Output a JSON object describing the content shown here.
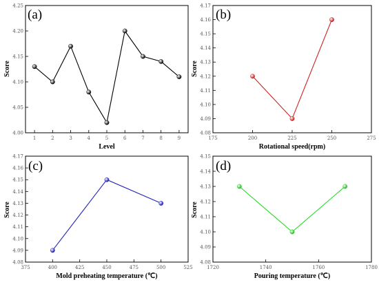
{
  "chart_data": [
    {
      "type": "line",
      "panel_label": "(a)",
      "xlabel": "Level",
      "ylabel": "Score",
      "x": [
        1,
        2,
        3,
        4,
        5,
        6,
        7,
        8,
        9
      ],
      "series": [
        {
          "values": [
            4.13,
            4.1,
            4.17,
            4.08,
            4.02,
            4.2,
            4.15,
            4.14,
            4.11
          ],
          "color": "#000000"
        }
      ],
      "xlim": [
        0.5,
        9.5
      ],
      "ylim": [
        4.0,
        4.25
      ],
      "xticks": [
        1,
        2,
        3,
        4,
        5,
        6,
        7,
        8,
        9
      ],
      "yticks": [
        4.0,
        4.05,
        4.1,
        4.15,
        4.2,
        4.25
      ],
      "ytick_labels": [
        "4.00",
        "4.05",
        "4.10",
        "4.15",
        "4.20",
        "4.25"
      ],
      "grid": false
    },
    {
      "type": "line",
      "panel_label": "(b)",
      "xlabel": "Rotational speed(rpm)",
      "ylabel": "Score",
      "x": [
        200,
        225,
        250
      ],
      "series": [
        {
          "values": [
            4.12,
            4.09,
            4.16
          ],
          "color": "#cc2222"
        }
      ],
      "xlim": [
        175,
        275
      ],
      "ylim": [
        4.08,
        4.17
      ],
      "xticks": [
        175,
        200,
        225,
        250,
        275
      ],
      "yticks": [
        4.08,
        4.09,
        4.1,
        4.11,
        4.12,
        4.13,
        4.14,
        4.15,
        4.16,
        4.17
      ],
      "ytick_labels": [
        "4.08",
        "4.09",
        "4.10",
        "4.11",
        "4.12",
        "4.13",
        "4.14",
        "4.15",
        "4.16",
        "4.17"
      ],
      "grid": false
    },
    {
      "type": "line",
      "panel_label": "(c)",
      "xlabel": "Mold preheating temperature (℃)",
      "ylabel": "Score",
      "x": [
        400,
        450,
        500
      ],
      "series": [
        {
          "values": [
            4.09,
            4.15,
            4.13
          ],
          "color": "#2222bb"
        }
      ],
      "xlim": [
        375,
        525
      ],
      "ylim": [
        4.08,
        4.17
      ],
      "xticks": [
        375,
        400,
        425,
        450,
        475,
        500,
        525
      ],
      "yticks": [
        4.08,
        4.09,
        4.1,
        4.11,
        4.12,
        4.13,
        4.14,
        4.15,
        4.16,
        4.17
      ],
      "ytick_labels": [
        "4.08",
        "4.09",
        "4.10",
        "4.11",
        "4.12",
        "4.13",
        "4.14",
        "4.15",
        "4.16",
        "4.17"
      ],
      "grid": false
    },
    {
      "type": "line",
      "panel_label": "(d)",
      "xlabel": "Pouring temperature (℃)",
      "ylabel": "Score",
      "x": [
        1730,
        1750,
        1770
      ],
      "series": [
        {
          "values": [
            4.13,
            4.1,
            4.13
          ],
          "color": "#22dd22"
        }
      ],
      "xlim": [
        1720,
        1780
      ],
      "ylim": [
        4.08,
        4.15
      ],
      "xticks": [
        1720,
        1740,
        1760,
        1780
      ],
      "yticks": [
        4.08,
        4.09,
        4.1,
        4.11,
        4.12,
        4.13,
        4.14,
        4.15
      ],
      "ytick_labels": [
        "4.08",
        "4.09",
        "4.10",
        "4.11",
        "4.12",
        "4.13",
        "4.14",
        "4.15"
      ],
      "grid": false
    }
  ]
}
